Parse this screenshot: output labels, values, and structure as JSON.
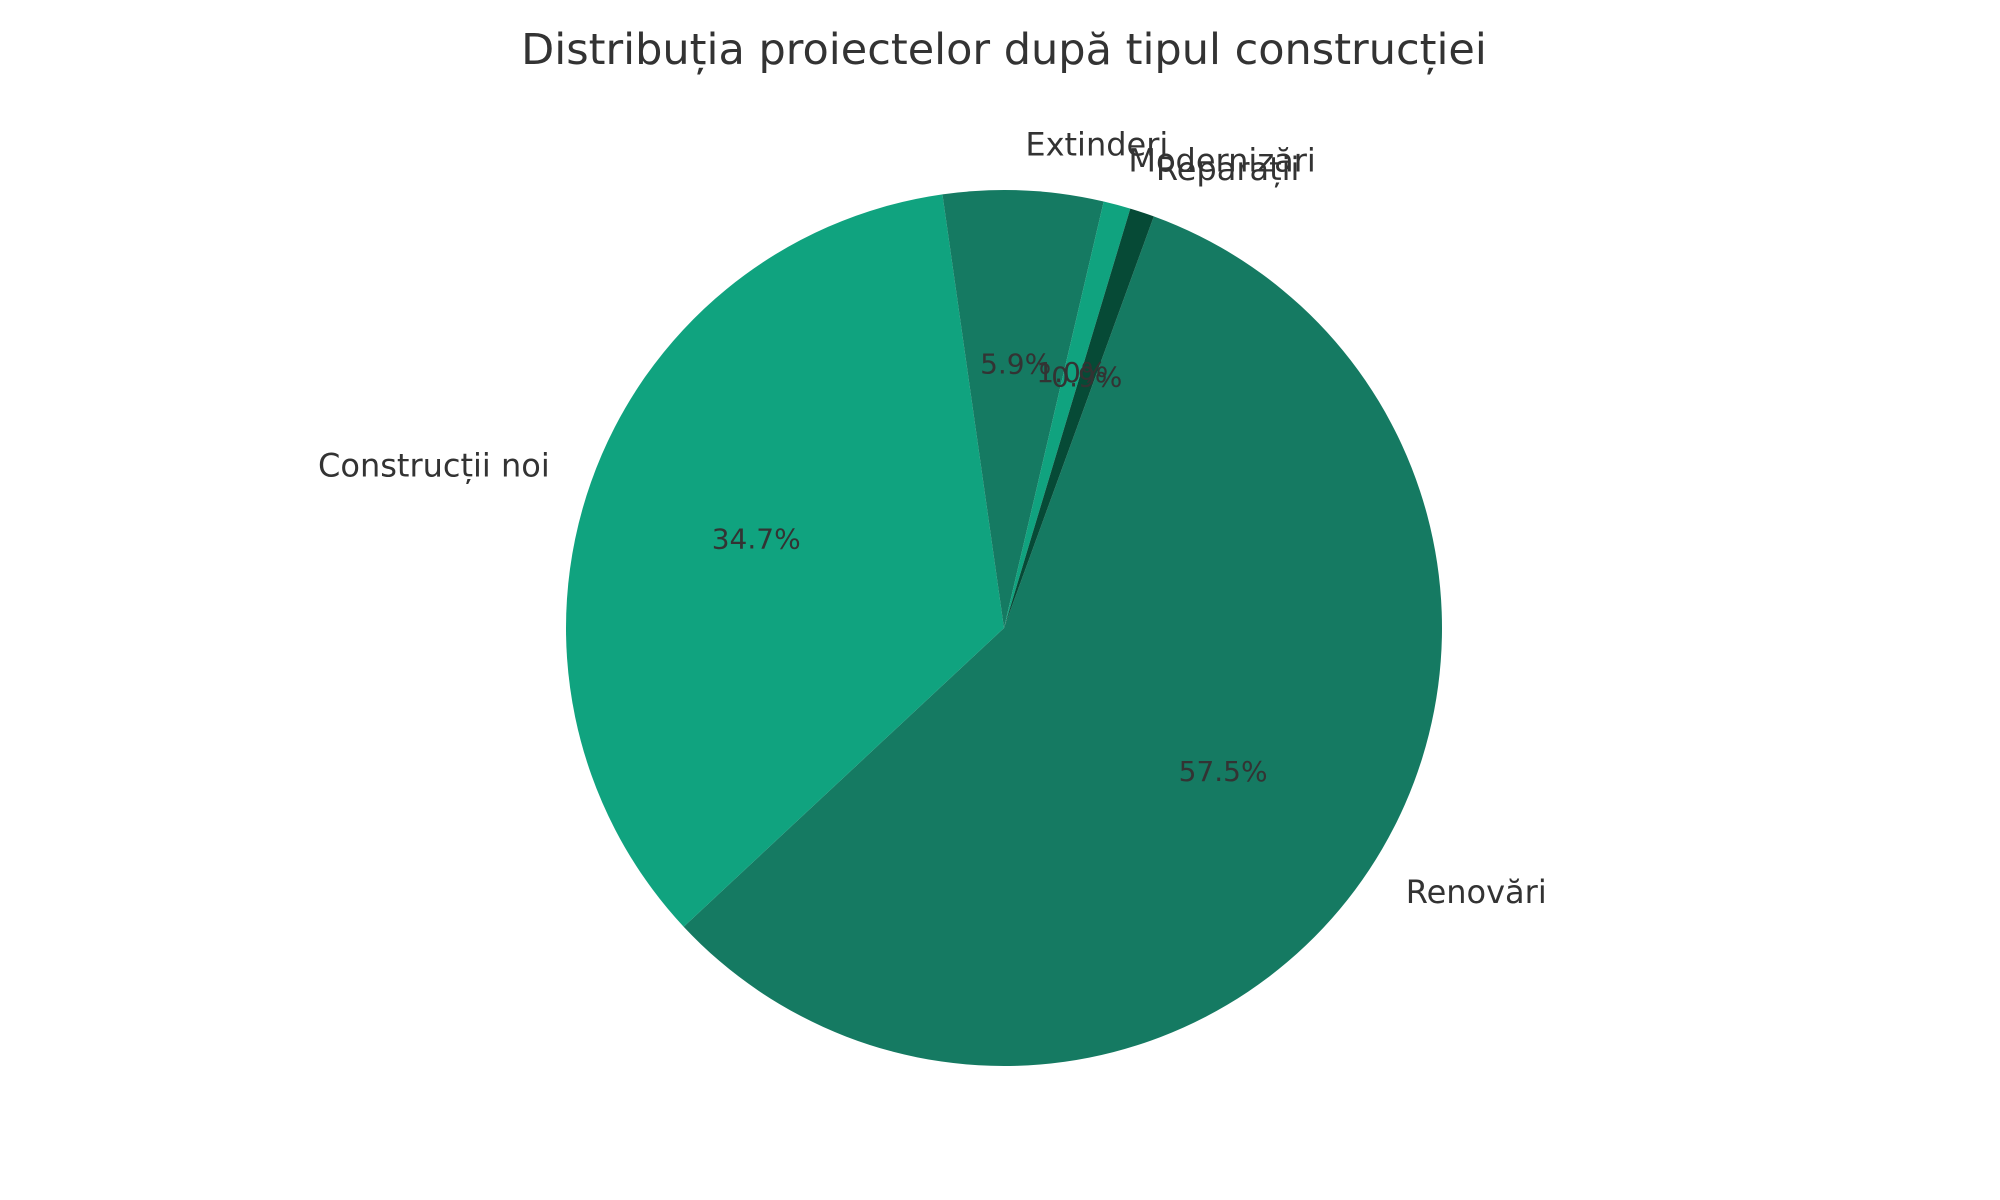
{
  "chart_data": {
    "type": "pie",
    "title": "Distribuția proiectelor după tipul construcției",
    "slices": [
      {
        "label": "Renovări",
        "value": 57.5,
        "pct_label": "57.5%",
        "color": "#157a62"
      },
      {
        "label": "Construcții noi",
        "value": 34.7,
        "pct_label": "34.7%",
        "color": "#10a37f"
      },
      {
        "label": "Extinderi",
        "value": 5.9,
        "pct_label": "5.9%",
        "color": "#157a62"
      },
      {
        "label": "Modernizări",
        "value": 1.0,
        "pct_label": "1.0%",
        "color": "#10a37f"
      },
      {
        "label": "Reparații",
        "value": 0.9,
        "pct_label": "0.9%",
        "color": "#064a36"
      }
    ],
    "start_angle_deg": 70,
    "direction": "clockwise",
    "legend": "none"
  }
}
